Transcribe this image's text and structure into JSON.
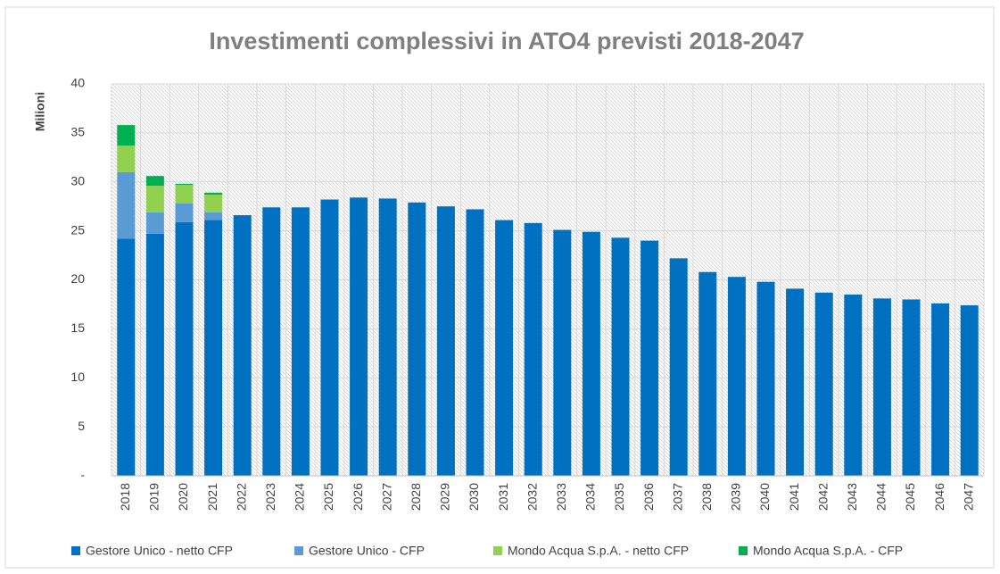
{
  "chart_data": {
    "type": "stacked_bar",
    "title": "Investimenti complessivi in ATO4 previsti 2018-2047",
    "y_label": "Milioni",
    "categories": [
      "2018",
      "2019",
      "2020",
      "2021",
      "2022",
      "2023",
      "2024",
      "2025",
      "2026",
      "2027",
      "2028",
      "2029",
      "2030",
      "2031",
      "2032",
      "2033",
      "2034",
      "2035",
      "2036",
      "2037",
      "2038",
      "2039",
      "2040",
      "2041",
      "2042",
      "2043",
      "2044",
      "2045",
      "2046",
      "2047"
    ],
    "series": [
      {
        "name": "Gestore Unico - netto CFP",
        "color": "#0070c0",
        "values": [
          24.2,
          24.7,
          25.9,
          26.1,
          26.6,
          27.4,
          27.4,
          28.2,
          28.4,
          28.3,
          27.9,
          27.5,
          27.2,
          26.1,
          25.8,
          25.1,
          24.9,
          24.3,
          24.0,
          22.2,
          20.8,
          20.3,
          19.8,
          19.1,
          18.7,
          18.5,
          18.1,
          18.0,
          17.6,
          17.4
        ]
      },
      {
        "name": "Gestore Unico - CFP",
        "color": "#5b9bd5",
        "values": [
          6.8,
          2.2,
          1.9,
          0.8,
          0,
          0,
          0,
          0,
          0,
          0,
          0,
          0,
          0,
          0,
          0,
          0,
          0,
          0,
          0,
          0,
          0,
          0,
          0,
          0,
          0,
          0,
          0,
          0,
          0,
          0
        ]
      },
      {
        "name": "Mondo Acqua S.p.A. - netto CFP",
        "color": "#92d050",
        "values": [
          2.7,
          2.7,
          1.9,
          1.8,
          0,
          0,
          0,
          0,
          0,
          0,
          0,
          0,
          0,
          0,
          0,
          0,
          0,
          0,
          0,
          0,
          0,
          0,
          0,
          0,
          0,
          0,
          0,
          0,
          0,
          0
        ]
      },
      {
        "name": "Mondo Acqua S.p.A. - CFP",
        "color": "#00b050",
        "values": [
          2.1,
          1.0,
          0.1,
          0.2,
          0,
          0,
          0,
          0,
          0,
          0,
          0,
          0,
          0,
          0,
          0,
          0,
          0,
          0,
          0,
          0,
          0,
          0,
          0,
          0,
          0,
          0,
          0,
          0,
          0,
          0
        ]
      }
    ],
    "ylim": [
      0,
      40
    ],
    "yticks": [
      {
        "value": 0,
        "label": "-"
      },
      5,
      10,
      15,
      20,
      25,
      30,
      35,
      40
    ],
    "grid": true,
    "legend": "bottom"
  }
}
